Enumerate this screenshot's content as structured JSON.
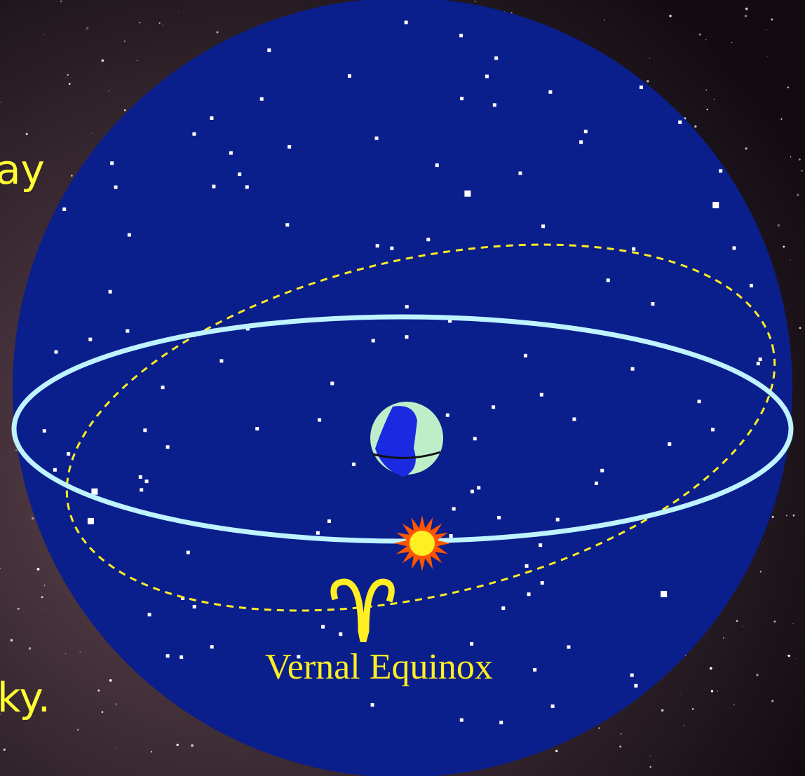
{
  "side_text": {
    "upper": "ay",
    "lower": "ky."
  },
  "diagram": {
    "caption": "Vernal Equinox"
  }
}
